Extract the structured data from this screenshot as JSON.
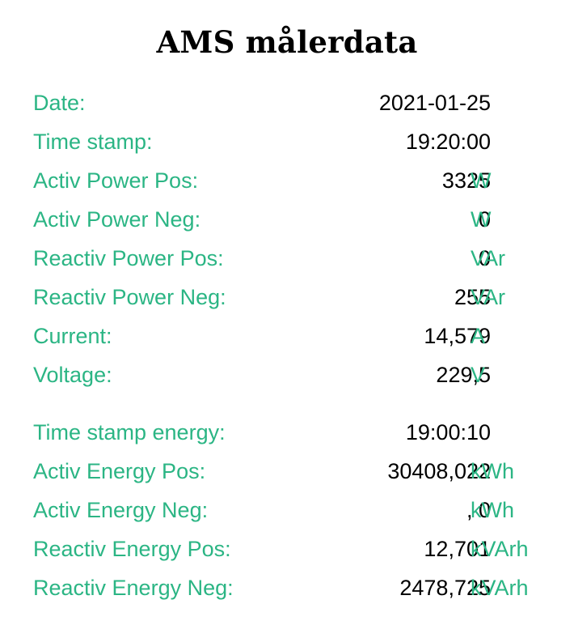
{
  "title": "AMS målerdata",
  "colors": {
    "label": "#2bb584",
    "value": "#000000",
    "title": "#000000",
    "background": "#ffffff"
  },
  "rows": [
    {
      "label": "Date:",
      "value": "2021-01-25",
      "unit": ""
    },
    {
      "label": "Time stamp:",
      "value": "19:20:00",
      "unit": ""
    },
    {
      "label": "Activ Power Pos:",
      "value": "3325",
      "unit": "W"
    },
    {
      "label": "Activ Power Neg:",
      "value": "0",
      "unit": "W"
    },
    {
      "label": "Reactiv Power Pos:",
      "value": "0",
      "unit": "VAr"
    },
    {
      "label": "Reactiv Power Neg:",
      "value": "255",
      "unit": "VAr"
    },
    {
      "label": "Current:",
      "value": "14,579",
      "unit": "A"
    },
    {
      "label": "Voltage:",
      "value": "229,5",
      "unit": "V"
    },
    {
      "label": "Time stamp energy:",
      "value": "19:00:10",
      "unit": ""
    },
    {
      "label": "Activ Energy Pos:",
      "value": "30408,022",
      "unit": "kWh"
    },
    {
      "label": "Activ Energy Neg:",
      "value": ", 0",
      "unit": "kWh"
    },
    {
      "label": "Reactiv Energy Pos:",
      "value": "12,701",
      "unit": "kVArh"
    },
    {
      "label": "Reactiv Energy Neg:",
      "value": "2478,725",
      "unit": "kVArh"
    }
  ]
}
